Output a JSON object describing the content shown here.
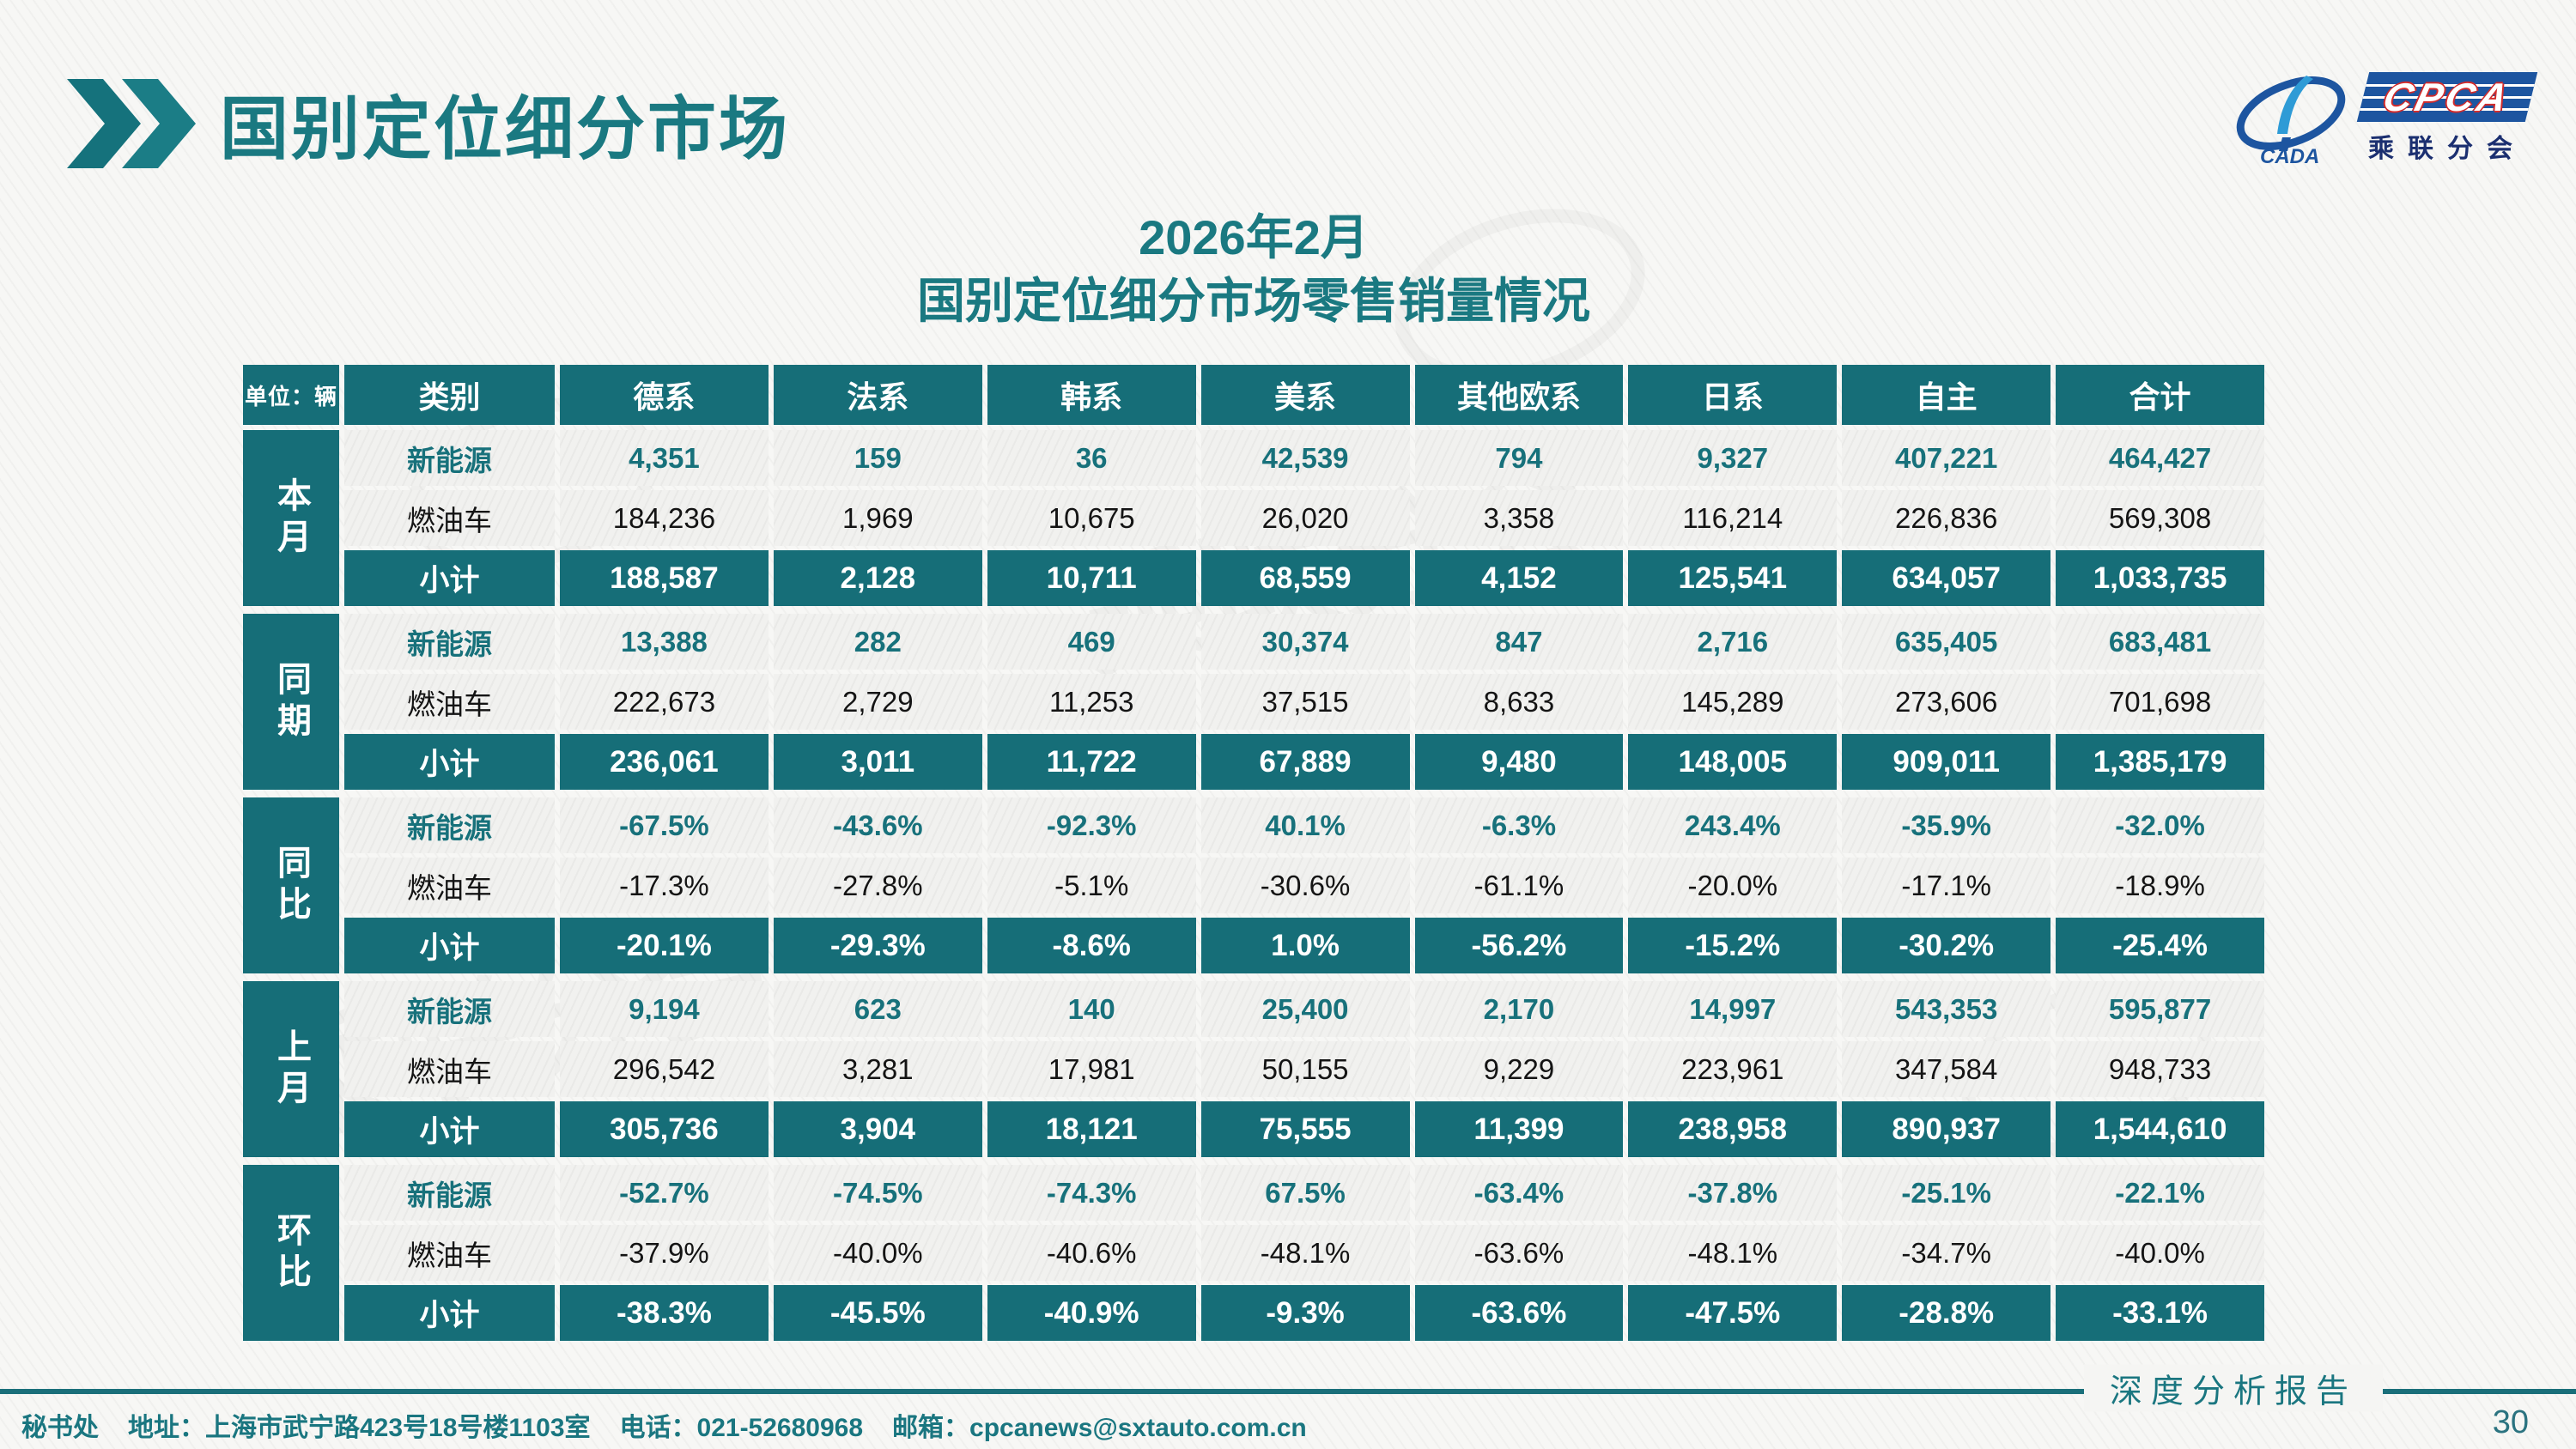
{
  "page": {
    "title": "国别定位细分市场",
    "date_title": "2026年2月",
    "subtitle": "国别定位细分市场零售销量情况"
  },
  "logo": {
    "cpca": "CPCA",
    "cada": "CADA",
    "cn": "乘联分会"
  },
  "watermark": "乘联分会",
  "colors": {
    "teal": "#166E78",
    "title_teal": "#1A7981",
    "logo_blue": "#1D55A0",
    "logo_red": "#D22B2B",
    "logo_dark_blue": "#1B2F70"
  },
  "table": {
    "unit_label": "单位：辆",
    "category_header": "类别",
    "columns": [
      "德系",
      "法系",
      "韩系",
      "美系",
      "其他欧系",
      "日系",
      "自主",
      "合计"
    ],
    "groups": [
      {
        "label": "本月",
        "rows": [
          {
            "type": "新能源",
            "kind": "nev",
            "values": [
              "4,351",
              "159",
              "36",
              "42,539",
              "794",
              "9,327",
              "407,221",
              "464,427"
            ]
          },
          {
            "type": "燃油车",
            "kind": "ice",
            "values": [
              "184,236",
              "1,969",
              "10,675",
              "26,020",
              "3,358",
              "116,214",
              "226,836",
              "569,308"
            ]
          },
          {
            "type": "小计",
            "kind": "subtotal",
            "values": [
              "188,587",
              "2,128",
              "10,711",
              "68,559",
              "4,152",
              "125,541",
              "634,057",
              "1,033,735"
            ]
          }
        ]
      },
      {
        "label": "同期",
        "rows": [
          {
            "type": "新能源",
            "kind": "nev",
            "values": [
              "13,388",
              "282",
              "469",
              "30,374",
              "847",
              "2,716",
              "635,405",
              "683,481"
            ]
          },
          {
            "type": "燃油车",
            "kind": "ice",
            "values": [
              "222,673",
              "2,729",
              "11,253",
              "37,515",
              "8,633",
              "145,289",
              "273,606",
              "701,698"
            ]
          },
          {
            "type": "小计",
            "kind": "subtotal",
            "values": [
              "236,061",
              "3,011",
              "11,722",
              "67,889",
              "9,480",
              "148,005",
              "909,011",
              "1,385,179"
            ]
          }
        ]
      },
      {
        "label": "同比",
        "rows": [
          {
            "type": "新能源",
            "kind": "nev",
            "values": [
              "-67.5%",
              "-43.6%",
              "-92.3%",
              "40.1%",
              "-6.3%",
              "243.4%",
              "-35.9%",
              "-32.0%"
            ]
          },
          {
            "type": "燃油车",
            "kind": "ice",
            "values": [
              "-17.3%",
              "-27.8%",
              "-5.1%",
              "-30.6%",
              "-61.1%",
              "-20.0%",
              "-17.1%",
              "-18.9%"
            ]
          },
          {
            "type": "小计",
            "kind": "subtotal",
            "values": [
              "-20.1%",
              "-29.3%",
              "-8.6%",
              "1.0%",
              "-56.2%",
              "-15.2%",
              "-30.2%",
              "-25.4%"
            ]
          }
        ]
      },
      {
        "label": "上月",
        "rows": [
          {
            "type": "新能源",
            "kind": "nev",
            "values": [
              "9,194",
              "623",
              "140",
              "25,400",
              "2,170",
              "14,997",
              "543,353",
              "595,877"
            ]
          },
          {
            "type": "燃油车",
            "kind": "ice",
            "values": [
              "296,542",
              "3,281",
              "17,981",
              "50,155",
              "9,229",
              "223,961",
              "347,584",
              "948,733"
            ]
          },
          {
            "type": "小计",
            "kind": "subtotal",
            "values": [
              "305,736",
              "3,904",
              "18,121",
              "75,555",
              "11,399",
              "238,958",
              "890,937",
              "1,544,610"
            ]
          }
        ]
      },
      {
        "label": "环比",
        "rows": [
          {
            "type": "新能源",
            "kind": "nev",
            "values": [
              "-52.7%",
              "-74.5%",
              "-74.3%",
              "67.5%",
              "-63.4%",
              "-37.8%",
              "-25.1%",
              "-22.1%"
            ]
          },
          {
            "type": "燃油车",
            "kind": "ice",
            "values": [
              "-37.9%",
              "-40.0%",
              "-40.6%",
              "-48.1%",
              "-63.6%",
              "-48.1%",
              "-34.7%",
              "-40.0%"
            ]
          },
          {
            "type": "小计",
            "kind": "subtotal",
            "values": [
              "-38.3%",
              "-45.5%",
              "-40.9%",
              "-9.3%",
              "-63.6%",
              "-47.5%",
              "-28.8%",
              "-33.1%"
            ]
          }
        ]
      }
    ]
  },
  "footer": {
    "secretariat": "秘书处",
    "address": "地址：上海市武宁路423号18号楼1103室",
    "phone": "电话：021-52680968",
    "email": "邮箱：cpcanews@sxtauto.com.cn",
    "report_label": "深度分析报告",
    "page_number": "30"
  }
}
